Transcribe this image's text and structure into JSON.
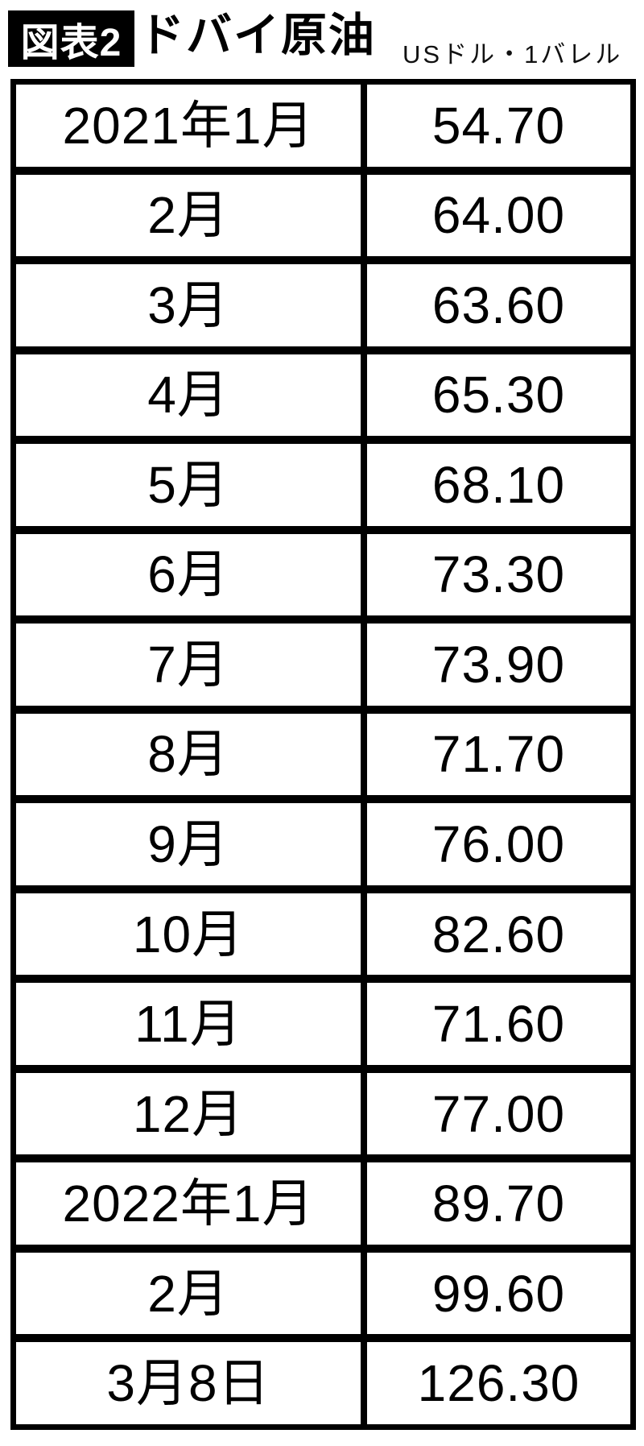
{
  "header": {
    "figure_label": "図表2",
    "title": "ドバイ原油",
    "unit": "USドル・1バレル"
  },
  "colors": {
    "ink": "#000000",
    "background": "#ffffff",
    "badge_background": "#000000",
    "badge_text": "#ffffff"
  },
  "table": {
    "rows": [
      {
        "month": "2021年1月",
        "value": "54.70"
      },
      {
        "month": "2月",
        "value": "64.00"
      },
      {
        "month": "3月",
        "value": "63.60"
      },
      {
        "month": "4月",
        "value": "65.30"
      },
      {
        "month": "5月",
        "value": "68.10"
      },
      {
        "month": "6月",
        "value": "73.30"
      },
      {
        "month": "7月",
        "value": "73.90"
      },
      {
        "month": "8月",
        "value": "71.70"
      },
      {
        "month": "9月",
        "value": "76.00"
      },
      {
        "month": "10月",
        "value": "82.60"
      },
      {
        "month": "11月",
        "value": "71.60"
      },
      {
        "month": "12月",
        "value": "77.00"
      },
      {
        "month": "2022年1月",
        "value": "89.70"
      },
      {
        "month": "2月",
        "value": "99.60"
      },
      {
        "month": "3月8日",
        "value": "126.30"
      }
    ]
  },
  "chart_data": {
    "type": "table",
    "title": "ドバイ原油",
    "figure_label": "図表2",
    "unit": "USドル・1バレル",
    "categories": [
      "2021年1月",
      "2月",
      "3月",
      "4月",
      "5月",
      "6月",
      "7月",
      "8月",
      "9月",
      "10月",
      "11月",
      "12月",
      "2022年1月",
      "2月",
      "3月8日"
    ],
    "values": [
      54.7,
      64.0,
      63.6,
      65.3,
      68.1,
      73.3,
      73.9,
      71.7,
      76.0,
      82.6,
      71.6,
      77.0,
      89.7,
      99.6,
      126.3
    ]
  }
}
